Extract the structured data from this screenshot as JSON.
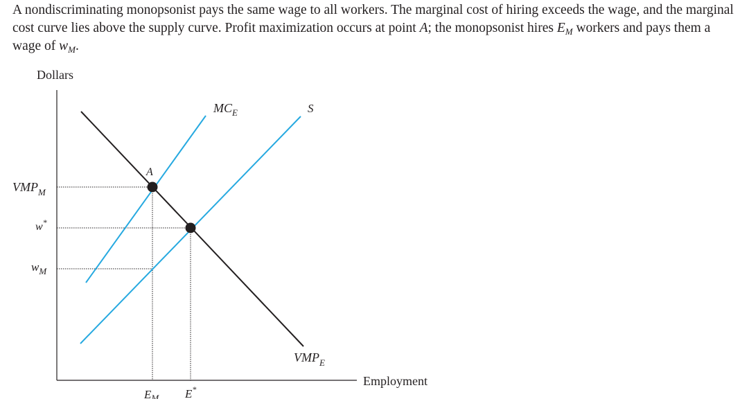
{
  "caption": {
    "part1": "A nondiscriminating monopsonist pays the same wage to all workers. The marginal cost of hiring exceeds the wage, and the marginal cost curve lies above the supply curve. Profit maximization occurs at point ",
    "point": "A",
    "part2": "; the monopsonist hires ",
    "emp_symbol": "E",
    "emp_subscript": "M",
    "part3": " workers and pays them a wage of ",
    "wage_symbol": "w",
    "wage_subscript": "M",
    "part4": "."
  },
  "axes": {
    "y_label": "Dollars",
    "x_label": "Employment"
  },
  "y_ticks": {
    "vmp_main": "VMP",
    "vmp_sub": "M",
    "wstar_main": "w",
    "wstar_sup": "*",
    "wm_main": "w",
    "wm_sub": "M"
  },
  "x_ticks": {
    "em_main": "E",
    "em_sub": "M",
    "estar_main": "E",
    "estar_sup": "*"
  },
  "curves": {
    "mce_main": "MC",
    "mce_sub": "E",
    "supply": "S",
    "vmpe_main": "VMP",
    "vmpe_sub": "E"
  },
  "points": {
    "a_label": "A"
  },
  "colors": {
    "supply_line": "#26a9e0",
    "mc_line": "#26a9e0",
    "demand_line": "#231f20",
    "axis": "#231f20",
    "dotted": "#231f20",
    "point_fill": "#231f20"
  }
}
